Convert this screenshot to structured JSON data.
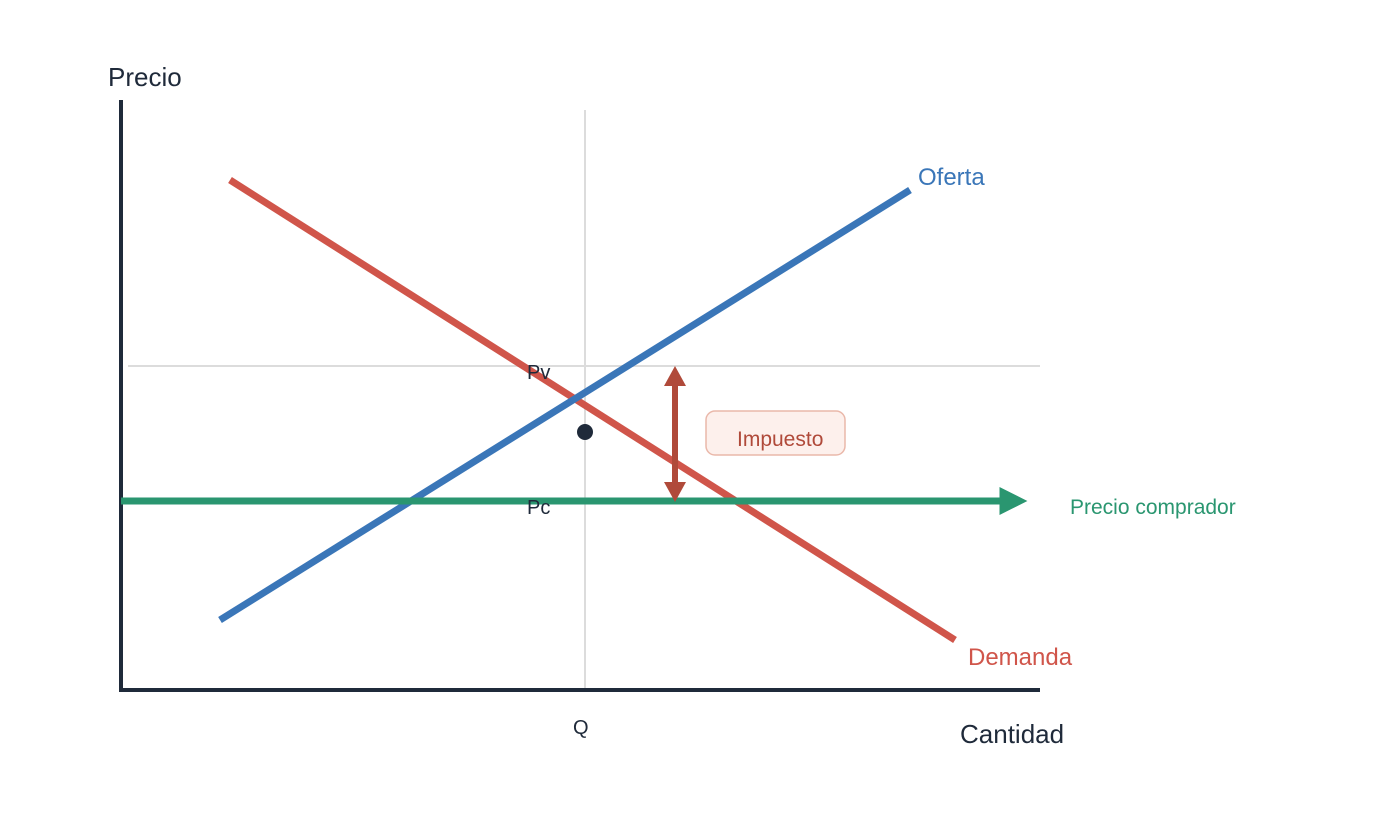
{
  "axes": {
    "y_label": "Precio",
    "x_label": "Cantidad"
  },
  "ticks": {
    "quantity": "Q",
    "seller_price": "Pv",
    "buyer_price": "Pc"
  },
  "curves": {
    "supply": {
      "label": "Oferta",
      "color": "#3a76b8"
    },
    "demand": {
      "label": "Demanda",
      "color": "#d0554a"
    },
    "buyer_price": {
      "label": "Precio comprador",
      "color": "#2a9670"
    }
  },
  "tax": {
    "label": "Impuesto",
    "color": "#b04a3a",
    "box_fill": "#fdf0ec",
    "box_stroke": "#eab8aa"
  },
  "colors": {
    "axis": "#1f2a3a",
    "guide": "#dcdcdc",
    "equilibrium_dot": "#1f2a3a"
  }
}
